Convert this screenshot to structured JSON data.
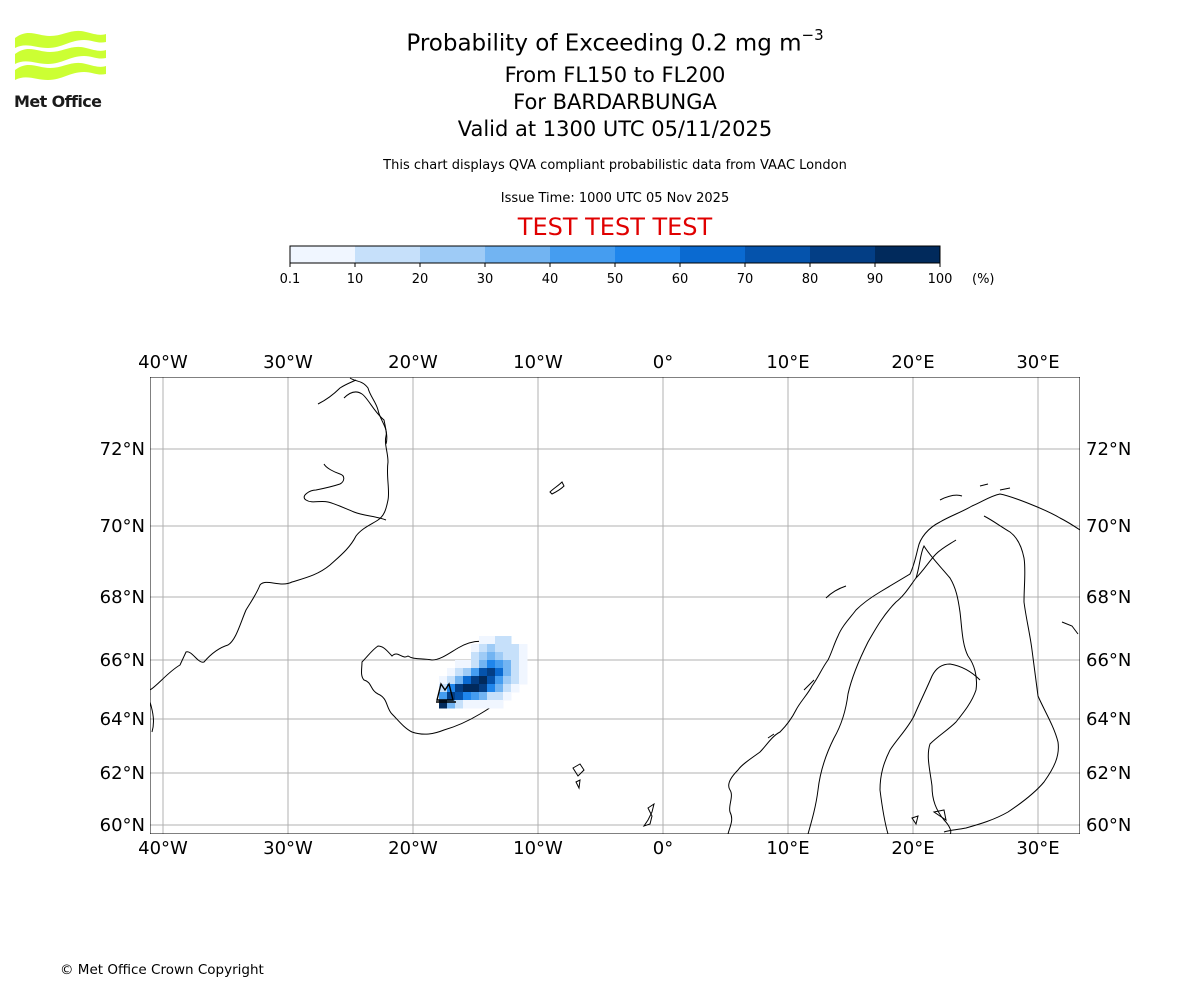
{
  "logo": {
    "text": "Met Office",
    "color": "#ccff33"
  },
  "header": {
    "title_main": "Probability of Exceeding 0.2 mg m",
    "title_sup": "−3",
    "level_range": "From FL150 to FL200",
    "volcano": "For BARDARBUNGA",
    "valid_time": "Valid at 1300 UTC 05/11/2025",
    "description": "This chart displays QVA compliant probabilistic data from VAAC London",
    "issue_time": "Issue Time: 1000 UTC 05 Nov 2025",
    "test_banner": "TEST TEST TEST"
  },
  "colorbar": {
    "ticks": [
      "0.1",
      "10",
      "20",
      "30",
      "40",
      "50",
      "60",
      "70",
      "80",
      "90",
      "100"
    ],
    "unit": "(%)",
    "colors": [
      "#f0f6ff",
      "#c6e0fa",
      "#9ecbf6",
      "#72b4f2",
      "#459df0",
      "#1f86ec",
      "#0a6ad1",
      "#0553ac",
      "#033e85",
      "#012a5c"
    ]
  },
  "map": {
    "lon_ticks": [
      "40°W",
      "30°W",
      "20°W",
      "10°W",
      "0°",
      "10°E",
      "20°E",
      "30°E"
    ],
    "lat_ticks": [
      "72°N",
      "70°N",
      "68°N",
      "66°N",
      "64°N",
      "62°N",
      "60°N"
    ],
    "volcano_marker": "BARDARBUNGA"
  },
  "footer": {
    "copyright": "© Met Office Crown Copyright"
  }
}
